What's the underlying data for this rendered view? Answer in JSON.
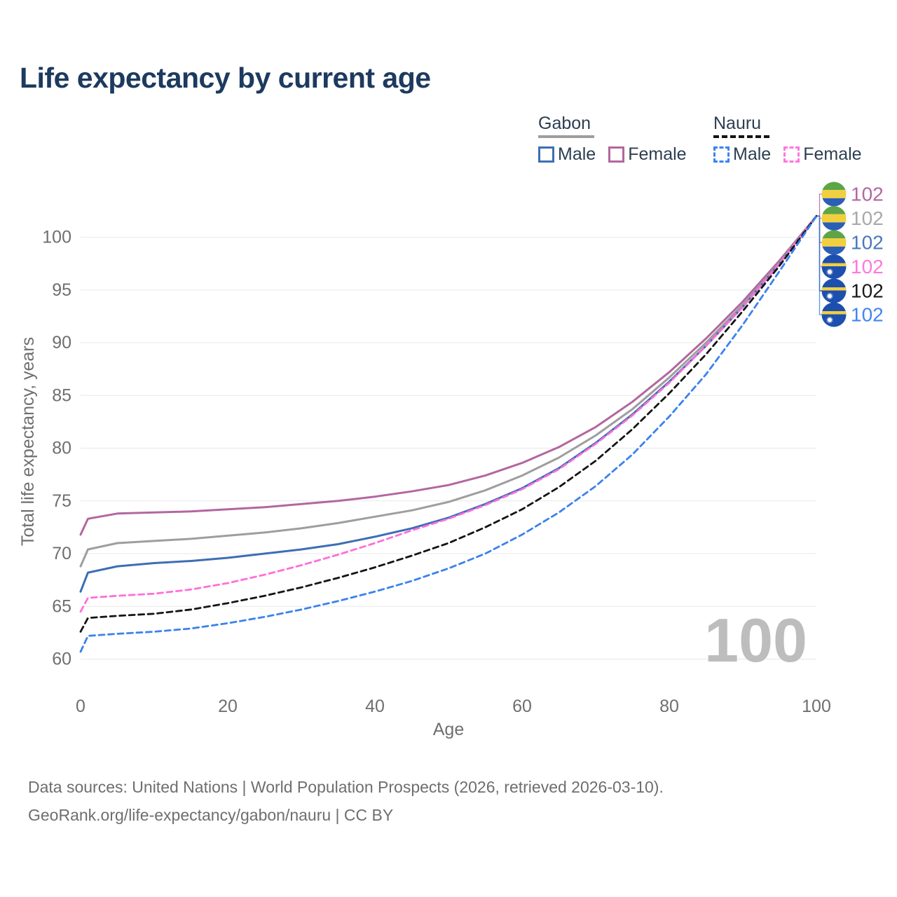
{
  "title": "Life expectancy by current age",
  "legend": {
    "groups": [
      {
        "name": "Gabon",
        "line_style": "solid",
        "line_color": "#9e9e9e",
        "items": [
          {
            "label": "Male",
            "color": "#3d6eb4",
            "dashed": false
          },
          {
            "label": "Female",
            "color": "#b2679f",
            "dashed": false
          }
        ]
      },
      {
        "name": "Nauru",
        "line_style": "dashed",
        "line_color": "#141414",
        "items": [
          {
            "label": "Male",
            "color": "#3b82ee",
            "dashed": true
          },
          {
            "label": "Female",
            "color": "#ff77dd",
            "dashed": true
          }
        ]
      }
    ]
  },
  "chart_data": {
    "type": "line",
    "title": "Life expectancy by current age",
    "xlabel": "Age",
    "ylabel": "Total life expectancy, years",
    "xlim": [
      0,
      100
    ],
    "ylim": [
      60,
      102
    ],
    "x_ticks": [
      0,
      20,
      40,
      60,
      80,
      100
    ],
    "y_ticks": [
      60,
      65,
      70,
      75,
      80,
      85,
      90,
      95,
      100
    ],
    "grid": "horizontal",
    "legend_position": "top-right",
    "age_counter": "100",
    "ages": [
      0,
      1,
      5,
      10,
      15,
      20,
      25,
      30,
      35,
      40,
      45,
      50,
      55,
      60,
      65,
      70,
      75,
      80,
      85,
      90,
      95,
      100
    ],
    "series": [
      {
        "name": "Gabon Female",
        "country": "Gabon",
        "sex": "Female",
        "flag": "gabon",
        "dashed": false,
        "color": "#b2679f",
        "label_color": "#b2679f",
        "end_label": "102",
        "values": [
          71.8,
          73.3,
          73.8,
          73.9,
          74.0,
          74.2,
          74.4,
          74.7,
          75.0,
          75.4,
          75.9,
          76.5,
          77.4,
          78.6,
          80.1,
          82.0,
          84.4,
          87.2,
          90.4,
          93.9,
          97.8,
          102
        ]
      },
      {
        "name": "Gabon Both sexes",
        "country": "Gabon",
        "sex": "Both",
        "flag": "gabon",
        "dashed": false,
        "color": "#9e9e9e",
        "label_color": "#a9a9a9",
        "end_label": "102",
        "values": [
          68.8,
          70.4,
          71.0,
          71.2,
          71.4,
          71.7,
          72.0,
          72.4,
          72.9,
          73.5,
          74.1,
          74.9,
          76.0,
          77.4,
          79.1,
          81.2,
          83.7,
          86.7,
          90.0,
          93.6,
          97.6,
          102
        ]
      },
      {
        "name": "Gabon Male",
        "country": "Gabon",
        "sex": "Male",
        "flag": "gabon",
        "dashed": false,
        "color": "#3d6eb4",
        "label_color": "#4a79bd",
        "end_label": "102",
        "values": [
          66.4,
          68.2,
          68.8,
          69.1,
          69.3,
          69.6,
          70.0,
          70.4,
          70.9,
          71.6,
          72.4,
          73.4,
          74.7,
          76.2,
          78.1,
          80.5,
          83.2,
          86.3,
          89.7,
          93.4,
          97.5,
          102
        ]
      },
      {
        "name": "Nauru Female",
        "country": "Nauru",
        "sex": "Female",
        "flag": "nauru",
        "dashed": true,
        "color": "#ff6fd8",
        "label_color": "#ff77dd",
        "end_label": "102",
        "values": [
          64.5,
          65.8,
          66.0,
          66.2,
          66.6,
          67.2,
          68.0,
          68.9,
          69.9,
          71.0,
          72.2,
          73.3,
          74.6,
          76.1,
          78.0,
          80.4,
          83.1,
          86.2,
          89.7,
          93.4,
          97.5,
          102
        ]
      },
      {
        "name": "Nauru Both sexes",
        "country": "Nauru",
        "sex": "Both",
        "flag": "nauru",
        "dashed": true,
        "color": "#141414",
        "label_color": "#1a1a1a",
        "end_label": "102",
        "values": [
          62.6,
          63.9,
          64.1,
          64.3,
          64.7,
          65.3,
          66.0,
          66.8,
          67.7,
          68.7,
          69.8,
          71.0,
          72.5,
          74.2,
          76.3,
          78.8,
          81.8,
          85.2,
          88.9,
          93.0,
          97.3,
          102
        ]
      },
      {
        "name": "Nauru Male",
        "country": "Nauru",
        "sex": "Male",
        "flag": "nauru",
        "dashed": true,
        "color": "#3b82ee",
        "label_color": "#4285f4",
        "end_label": "102",
        "values": [
          60.7,
          62.2,
          62.4,
          62.6,
          62.9,
          63.4,
          64.0,
          64.7,
          65.5,
          66.4,
          67.4,
          68.6,
          70.0,
          71.8,
          73.9,
          76.4,
          79.4,
          83.0,
          87.0,
          91.7,
          96.8,
          102
        ]
      }
    ]
  },
  "colors": {
    "title": "#1d3a5f",
    "axis_text": "#6f6f6f",
    "gridline": "#e8e8e8",
    "watermark": "#bdbdbd",
    "legend_text": "#2d3e50",
    "gabon_flag": [
      "#5da546",
      "#f2cf3f",
      "#2b5fb6"
    ],
    "nauru_flag_blue": "#1c4fae",
    "nauru_flag_yellow": "#f2cf3f"
  },
  "footer": {
    "line1": "Data sources: United Nations | World Population Prospects (2026, retrieved 2026-03-10).",
    "line2": "GeoRank.org/life-expectancy/gabon/nauru | CC BY"
  }
}
